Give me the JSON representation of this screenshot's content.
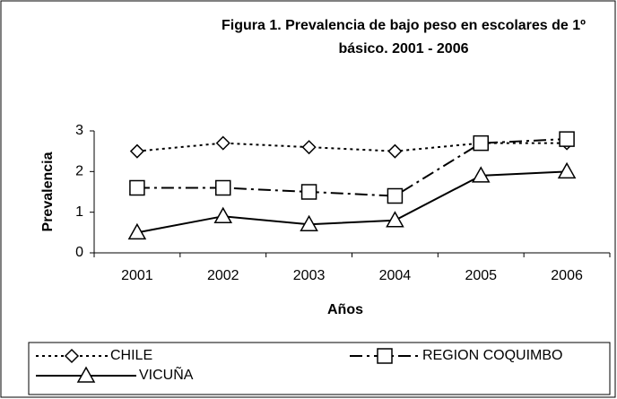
{
  "chart_data": {
    "type": "line",
    "title": "Figura 1. Prevalencia de bajo peso en escolares de 1º básico. 2001 - 2006",
    "x_label": "Años",
    "y_label": "Prevalencia",
    "categories": [
      "2001",
      "2002",
      "2003",
      "2004",
      "2005",
      "2006"
    ],
    "series": [
      {
        "name": "CHILE",
        "color": "#000000",
        "dash": "dotted",
        "marker": "diamond",
        "values": [
          2.5,
          2.7,
          2.6,
          2.5,
          2.7,
          2.7
        ]
      },
      {
        "name": "REGION COQUIMBO",
        "color": "#000000",
        "dash": "dashdot",
        "marker": "square",
        "values": [
          1.6,
          1.6,
          1.5,
          1.4,
          2.7,
          2.8
        ]
      },
      {
        "name": "VICUÑA",
        "color": "#000000",
        "dash": "solid",
        "marker": "triangle",
        "values": [
          0.5,
          0.9,
          0.7,
          0.8,
          1.9,
          2.0
        ]
      }
    ],
    "ylim": [
      0,
      3
    ],
    "yticks": [
      0,
      1,
      2,
      3
    ],
    "grid": false,
    "legend": "bottom"
  }
}
